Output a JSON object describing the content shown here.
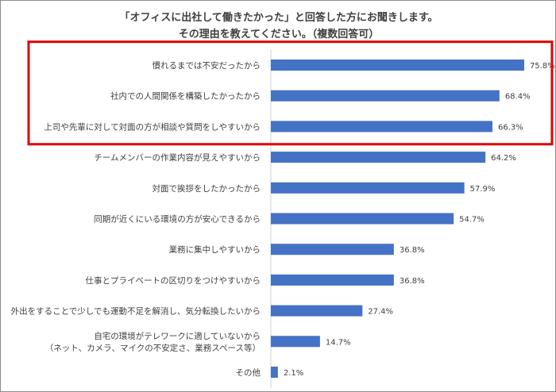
{
  "chart_data": {
    "type": "bar",
    "orientation": "horizontal",
    "title": "「オフィスに出社して働きたかった」と回答した方にお聞きします。",
    "subtitle": "その理由を教えてください。（複数回答可）",
    "xlim": [
      0,
      77
    ],
    "bar_color": "#4472C4",
    "highlight_color": "#E00000",
    "highlighted_count": 3,
    "categories": [
      [
        "慣れるまでは不安だったから"
      ],
      [
        "社内での人間関係を構築したかったから"
      ],
      [
        "上司や先輩に対して対面の方が相談や質問をしやすいから"
      ],
      [
        "チームメンバーの作業内容が見えやすいから"
      ],
      [
        "対面で挨拶をしたかったから"
      ],
      [
        "同期が近くにいる環境の方が安心できるから"
      ],
      [
        "業務に集中しやすいから"
      ],
      [
        "仕事とプライベートの区切りをつけやすいから"
      ],
      [
        "外出をすることで少しでも運動不足を解消し、気分転換したいから"
      ],
      [
        "自宅の環境がテレワークに適していないから",
        "（ネット、カメラ、マイクの不安定さ、業務スペース等）"
      ],
      [
        "その他"
      ]
    ],
    "values": [
      75.8,
      68.4,
      66.3,
      64.2,
      57.9,
      54.7,
      36.8,
      36.8,
      27.4,
      14.7,
      2.1
    ],
    "value_labels": [
      "75.8%",
      "68.4%",
      "66.3%",
      "64.2%",
      "57.9%",
      "54.7%",
      "36.8%",
      "36.8%",
      "27.4%",
      "14.7%",
      "2.1%"
    ]
  }
}
